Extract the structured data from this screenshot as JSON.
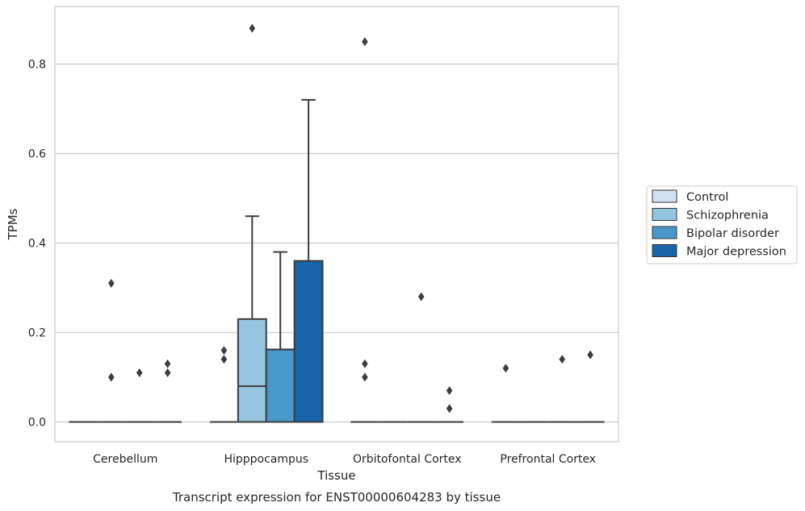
{
  "chart_data": {
    "type": "box",
    "caption": "Transcript expression for ENST00000604283 by tissue",
    "xlabel": "Tissue",
    "ylabel": "TPMs",
    "ylim": [
      -0.043,
      0.93
    ],
    "yticks": [
      "0.0",
      "0.2",
      "0.4",
      "0.6",
      "0.8"
    ],
    "categories": [
      "Cerebellum",
      "Hipppocampus",
      "Orbitofontal Cortex",
      "Prefrontal Cortex"
    ],
    "legend_position": "right",
    "grid": true,
    "series": [
      {
        "name": "Control",
        "color": "#d0e1f2",
        "boxes": [
          {
            "q1": 0,
            "median": 0,
            "q3": 0,
            "whisker_low": 0,
            "whisker_high": 0,
            "outliers": []
          },
          {
            "q1": 0,
            "median": 0,
            "q3": 0,
            "whisker_low": 0,
            "whisker_high": 0,
            "outliers": [
              0.14,
              0.16
            ]
          },
          {
            "q1": 0,
            "median": 0,
            "q3": 0,
            "whisker_low": 0,
            "whisker_high": 0,
            "outliers": [
              0.1,
              0.13,
              0.85
            ]
          },
          {
            "q1": 0,
            "median": 0,
            "q3": 0,
            "whisker_low": 0,
            "whisker_high": 0,
            "outliers": [
              0.12
            ]
          }
        ]
      },
      {
        "name": "Schizophrenia",
        "color": "#94c4df",
        "boxes": [
          {
            "q1": 0,
            "median": 0,
            "q3": 0,
            "whisker_low": 0,
            "whisker_high": 0,
            "outliers": [
              0.1,
              0.31
            ]
          },
          {
            "q1": 0,
            "median": 0.08,
            "q3": 0.23,
            "whisker_low": 0,
            "whisker_high": 0.46,
            "outliers": [
              0.88
            ]
          },
          {
            "q1": 0,
            "median": 0,
            "q3": 0,
            "whisker_low": 0,
            "whisker_high": 0,
            "outliers": []
          },
          {
            "q1": 0,
            "median": 0,
            "q3": 0,
            "whisker_low": 0,
            "whisker_high": 0,
            "outliers": []
          }
        ]
      },
      {
        "name": "Bipolar disorder",
        "color": "#4a98c9",
        "boxes": [
          {
            "q1": 0,
            "median": 0,
            "q3": 0,
            "whisker_low": 0,
            "whisker_high": 0,
            "outliers": [
              0.11
            ]
          },
          {
            "q1": 0,
            "median": 0.162,
            "q3": 0.162,
            "whisker_low": 0,
            "whisker_high": 0.38,
            "outliers": []
          },
          {
            "q1": 0,
            "median": 0,
            "q3": 0,
            "whisker_low": 0,
            "whisker_high": 0,
            "outliers": [
              0.28
            ]
          },
          {
            "q1": 0,
            "median": 0,
            "q3": 0,
            "whisker_low": 0,
            "whisker_high": 0,
            "outliers": [
              0.14
            ]
          }
        ]
      },
      {
        "name": "Major depression",
        "color": "#1764ab",
        "boxes": [
          {
            "q1": 0,
            "median": 0,
            "q3": 0,
            "whisker_low": 0,
            "whisker_high": 0,
            "outliers": [
              0.11,
              0.13
            ]
          },
          {
            "q1": 0,
            "median": 0,
            "q3": 0.36,
            "whisker_low": 0,
            "whisker_high": 0.72,
            "outliers": []
          },
          {
            "q1": 0,
            "median": 0,
            "q3": 0,
            "whisker_low": 0,
            "whisker_high": 0,
            "outliers": [
              0.03,
              0.07
            ]
          },
          {
            "q1": 0,
            "median": 0,
            "q3": 0,
            "whisker_low": 0,
            "whisker_high": 0,
            "outliers": [
              0.15
            ]
          }
        ]
      }
    ]
  }
}
